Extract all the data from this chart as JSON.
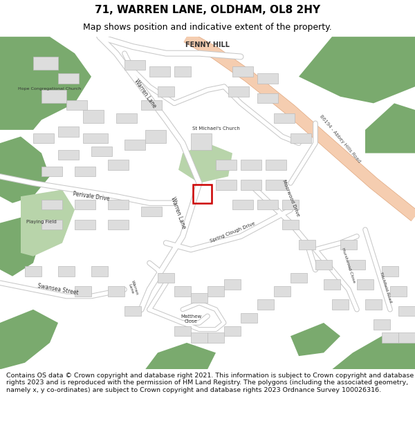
{
  "title_line1": "71, WARREN LANE, OLDHAM, OL8 2HY",
  "title_line2": "Map shows position and indicative extent of the property.",
  "title_fontsize": 11,
  "subtitle_fontsize": 9,
  "footer_text": "Contains OS data © Crown copyright and database right 2021. This information is subject to Crown copyright and database rights 2023 and is reproduced with the permission of HM Land Registry. The polygons (including the associated geometry, namely x, y co-ordinates) are subject to Crown copyright and database rights 2023 Ordnance Survey 100026316.",
  "footer_fontsize": 6.8,
  "bg_color": "#ffffff",
  "map_bg": "#f7f7f7",
  "road_fill": "#f5cdb0",
  "road_border": "#e0a880",
  "green_dark": "#7aaa6e",
  "green_light": "#b8d4aa",
  "building_fill": "#dddddd",
  "building_edge": "#bbbbbb",
  "plot_color": "#cc0000",
  "fig_width": 6.0,
  "fig_height": 6.25,
  "dpi": 100
}
